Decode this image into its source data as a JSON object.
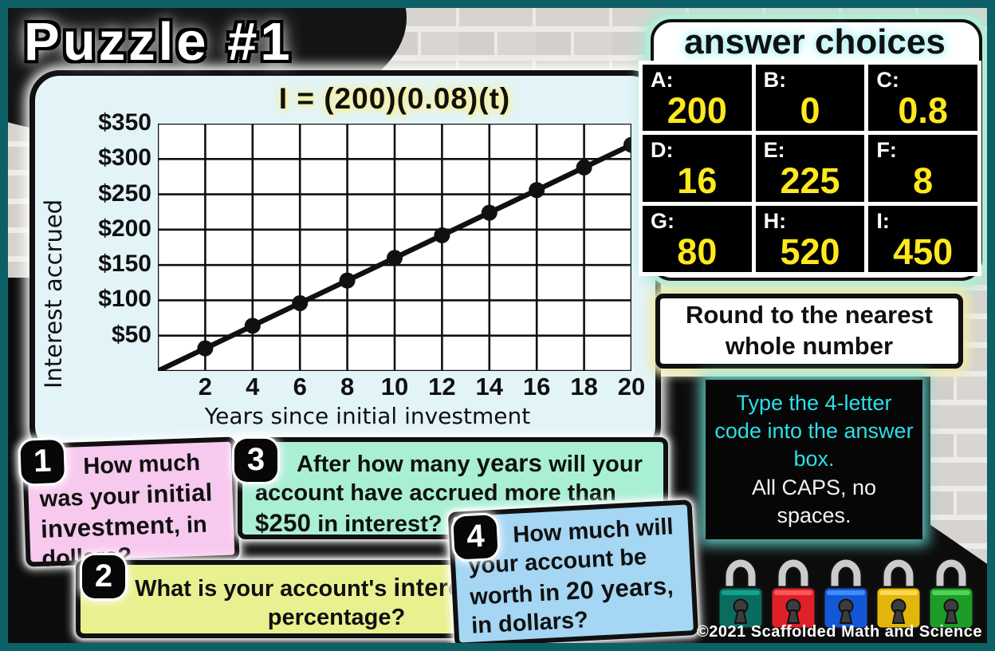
{
  "title": "Puzzle #1",
  "chart_data": {
    "type": "line",
    "title": "I = (200)(0.08)(t)",
    "xlabel": "Years since initial investment",
    "ylabel": "Interest accrued",
    "x": [
      2,
      4,
      6,
      8,
      10,
      12,
      14,
      16,
      18,
      20
    ],
    "y": [
      32,
      64,
      96,
      128,
      160,
      192,
      224,
      256,
      288,
      320
    ],
    "line_start": [
      0,
      0
    ],
    "xlim": [
      0,
      20
    ],
    "ylim": [
      0,
      350
    ],
    "x_grid_step": 2,
    "y_grid_step": 50,
    "grid": true,
    "legend": "none",
    "x_tick_labels": [
      "2",
      "4",
      "6",
      "8",
      "10",
      "12",
      "14",
      "16",
      "18",
      "20"
    ],
    "y_ticks": [
      {
        "value": 350,
        "label": "$350"
      },
      {
        "value": 300,
        "label": "$300"
      },
      {
        "value": 250,
        "label": "$250"
      },
      {
        "value": 200,
        "label": "$200"
      },
      {
        "value": 150,
        "label": "$150"
      },
      {
        "value": 100,
        "label": "$100"
      },
      {
        "value": 50,
        "label": "$50"
      }
    ],
    "line_color": "#101010",
    "point_color": "#101010"
  },
  "answer_choices": {
    "title": "answer choices",
    "value_color": "#ffe81e",
    "items": [
      {
        "label": "A:",
        "value": "200"
      },
      {
        "label": "B:",
        "value": "0"
      },
      {
        "label": "C:",
        "value": "0.8"
      },
      {
        "label": "D:",
        "value": "16"
      },
      {
        "label": "E:",
        "value": "225"
      },
      {
        "label": "F:",
        "value": "8"
      },
      {
        "label": "G:",
        "value": "80"
      },
      {
        "label": "H:",
        "value": "520"
      },
      {
        "label": "I:",
        "value": "450"
      }
    ]
  },
  "notes": {
    "round": "Round to the nearest whole number",
    "code_line_highlight": "Type the 4-letter code into the answer box.",
    "code_line_rest": "All CAPS, no spaces."
  },
  "questions": [
    {
      "number": "1",
      "parts": [
        {
          "t": "How much was your ",
          "b": false
        },
        {
          "t": "initial investment",
          "b": true
        },
        {
          "t": ", in dollars?",
          "b": false
        }
      ]
    },
    {
      "number": "2",
      "parts": [
        {
          "t": "What is your account's ",
          "b": false
        },
        {
          "t": "interest rate",
          "b": true
        },
        {
          "t": " percentage?",
          "b": false
        }
      ]
    },
    {
      "number": "3",
      "parts": [
        {
          "t": "After how many ",
          "b": false
        },
        {
          "t": "years",
          "b": true
        },
        {
          "t": " will your account have accrued more than ",
          "b": false
        },
        {
          "t": "$250",
          "b": true
        },
        {
          "t": " in interest?",
          "b": false
        }
      ]
    },
    {
      "number": "4",
      "parts": [
        {
          "t": "How much will your account be worth in ",
          "b": false
        },
        {
          "t": "20 years",
          "b": true
        },
        {
          "t": ", in dollars?",
          "b": false
        }
      ]
    }
  ],
  "locks": {
    "items": [
      {
        "name": "teal-lock",
        "body": "#0b6b5e",
        "band": "#12a38e"
      },
      {
        "name": "red-lock",
        "body": "#de2129",
        "band": "#ff5757"
      },
      {
        "name": "blue-lock",
        "body": "#1457d6",
        "band": "#3f8df7"
      },
      {
        "name": "gold-lock",
        "body": "#e3b60c",
        "band": "#ffd94e"
      },
      {
        "name": "green-lock",
        "body": "#1d9c28",
        "band": "#4fd354"
      }
    ]
  },
  "copyright": "©2021 Scaffolded Math and Science",
  "frame_color": "#0d6066"
}
